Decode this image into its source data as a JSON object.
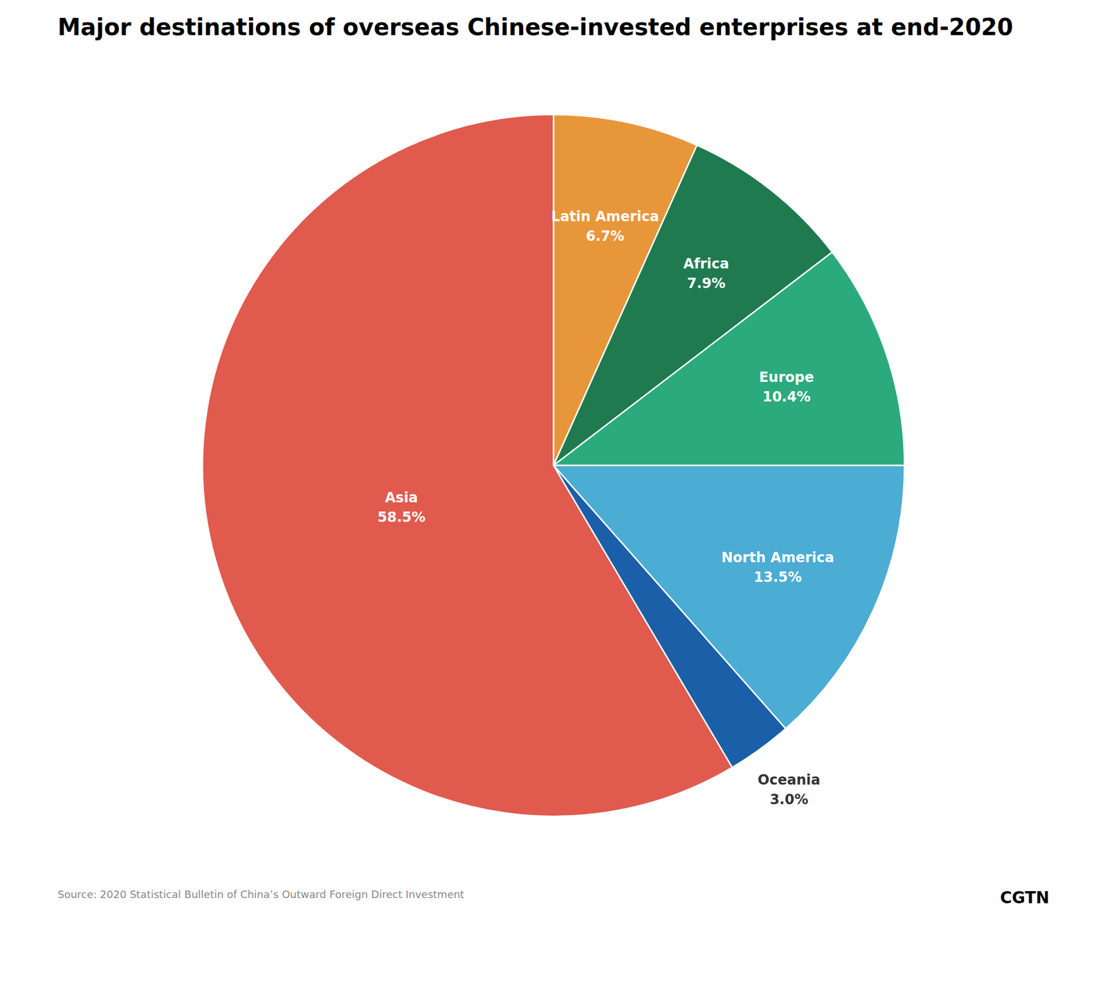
{
  "chart_data": {
    "type": "pie",
    "title": "Major destinations of overseas Chinese-invested enterprises at end-2020",
    "categories": [
      "Latin America",
      "Africa",
      "Europe",
      "North America",
      "Oceania",
      "Asia"
    ],
    "values": [
      6.7,
      7.9,
      10.4,
      13.5,
      3.0,
      58.5
    ],
    "value_labels": [
      "6.7%",
      "7.9%",
      "10.4%",
      "13.5%",
      "3.0%",
      "58.5%"
    ],
    "colors": [
      "#e8963a",
      "#1f7a50",
      "#2baa7e",
      "#4bacd4",
      "#1a5fa8",
      "#e05a4e"
    ],
    "data_labels": true,
    "caption": "Source: 2020 Statistical Bulletin of China’s Outward Foreign Direct Investment",
    "annotations": [
      "CGTN"
    ]
  }
}
